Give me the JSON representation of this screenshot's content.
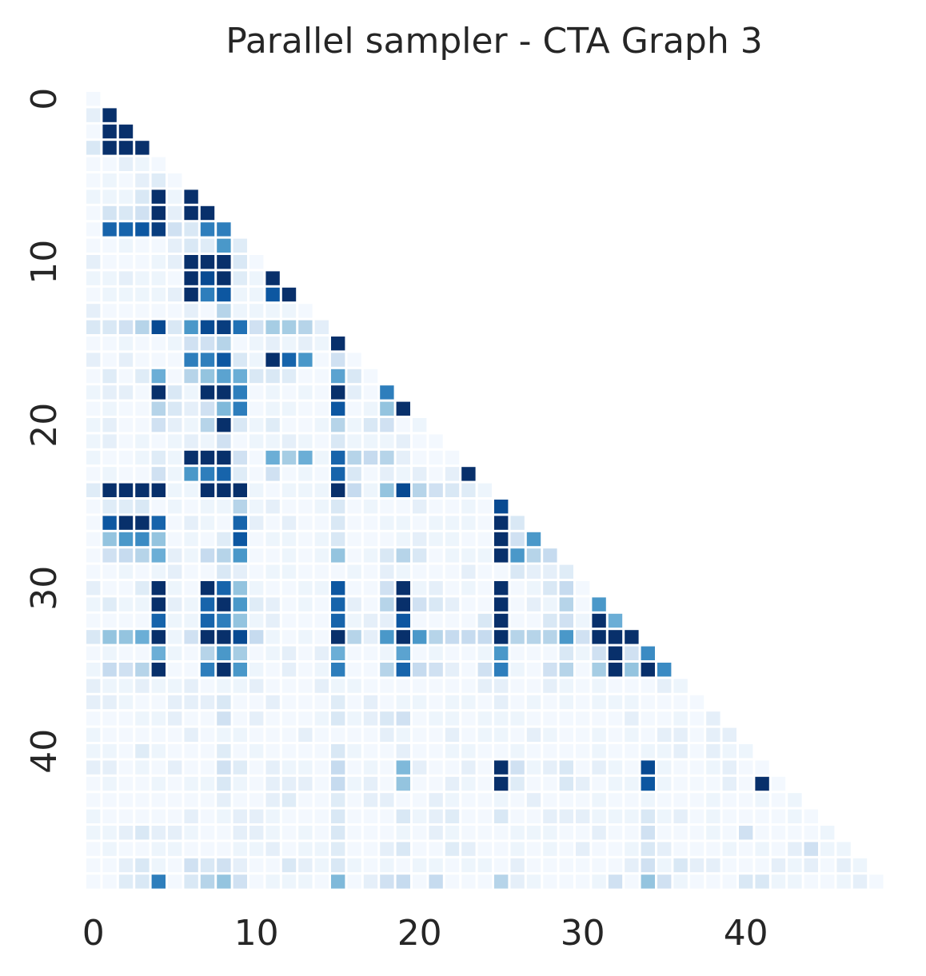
{
  "chart_data": {
    "type": "heatmap",
    "title": "Parallel sampler - CTA Graph 3",
    "xlabel": "",
    "ylabel": "",
    "n": 49,
    "x_ticks": [
      0,
      10,
      20,
      30,
      40
    ],
    "y_ticks": [
      0,
      10,
      20,
      30,
      40
    ],
    "mask": "upper-triangle (j > i) hidden",
    "colormap": "Blues",
    "colorbar": false,
    "grid": false,
    "value_range": [
      0,
      1
    ],
    "colors": {
      "low": "#f7fbff",
      "high": "#08306b"
    },
    "cells": [
      [
        1,
        1,
        1.0
      ],
      [
        2,
        1,
        1.0
      ],
      [
        2,
        2,
        1.0
      ],
      [
        3,
        1,
        1.0
      ],
      [
        3,
        2,
        1.0
      ],
      [
        3,
        3,
        1.0
      ],
      [
        3,
        0,
        0.15
      ],
      [
        5,
        4,
        0.12
      ],
      [
        6,
        4,
        1.0
      ],
      [
        6,
        6,
        1.0
      ],
      [
        6,
        3,
        0.15
      ],
      [
        7,
        4,
        1.0
      ],
      [
        7,
        6,
        1.0
      ],
      [
        7,
        7,
        1.0
      ],
      [
        7,
        1,
        0.18
      ],
      [
        7,
        2,
        0.15
      ],
      [
        7,
        3,
        0.2
      ],
      [
        8,
        1,
        0.8
      ],
      [
        8,
        2,
        0.8
      ],
      [
        8,
        3,
        0.85
      ],
      [
        8,
        4,
        0.95
      ],
      [
        8,
        5,
        0.2
      ],
      [
        8,
        6,
        0.15
      ],
      [
        8,
        7,
        0.7
      ],
      [
        8,
        8,
        0.7
      ],
      [
        9,
        8,
        0.6
      ],
      [
        9,
        6,
        0.15
      ],
      [
        9,
        7,
        0.12
      ],
      [
        9,
        9,
        0.12
      ],
      [
        10,
        6,
        1.0
      ],
      [
        10,
        7,
        1.0
      ],
      [
        10,
        8,
        1.0
      ],
      [
        10,
        9,
        0.15
      ],
      [
        11,
        6,
        1.0
      ],
      [
        11,
        7,
        0.9
      ],
      [
        11,
        8,
        1.0
      ],
      [
        11,
        11,
        1.0
      ],
      [
        11,
        9,
        0.12
      ],
      [
        12,
        6,
        1.0
      ],
      [
        12,
        7,
        0.7
      ],
      [
        12,
        8,
        0.85
      ],
      [
        12,
        11,
        0.85
      ],
      [
        12,
        12,
        1.0
      ],
      [
        13,
        8,
        0.3
      ],
      [
        14,
        0,
        0.15
      ],
      [
        14,
        1,
        0.15
      ],
      [
        14,
        2,
        0.2
      ],
      [
        14,
        3,
        0.3
      ],
      [
        14,
        4,
        0.9
      ],
      [
        14,
        5,
        0.15
      ],
      [
        14,
        6,
        0.6
      ],
      [
        14,
        7,
        0.9
      ],
      [
        14,
        8,
        0.95
      ],
      [
        14,
        9,
        0.75
      ],
      [
        14,
        10,
        0.2
      ],
      [
        14,
        11,
        0.35
      ],
      [
        14,
        12,
        0.35
      ],
      [
        14,
        13,
        0.3
      ],
      [
        14,
        14,
        0.1
      ],
      [
        15,
        15,
        1.0
      ],
      [
        15,
        8,
        0.3
      ],
      [
        15,
        7,
        0.2
      ],
      [
        15,
        6,
        0.2
      ],
      [
        16,
        6,
        0.7
      ],
      [
        16,
        7,
        0.7
      ],
      [
        16,
        8,
        0.85
      ],
      [
        16,
        11,
        1.0
      ],
      [
        16,
        12,
        0.8
      ],
      [
        16,
        13,
        0.6
      ],
      [
        16,
        15,
        0.2
      ],
      [
        16,
        9,
        0.15
      ],
      [
        17,
        4,
        0.5
      ],
      [
        17,
        6,
        0.3
      ],
      [
        17,
        7,
        0.4
      ],
      [
        17,
        8,
        0.55
      ],
      [
        17,
        9,
        0.5
      ],
      [
        17,
        15,
        0.55
      ],
      [
        17,
        16,
        0.15
      ],
      [
        17,
        1,
        0.12
      ],
      [
        17,
        3,
        0.12
      ],
      [
        17,
        10,
        0.15
      ],
      [
        17,
        11,
        0.15
      ],
      [
        17,
        12,
        0.12
      ],
      [
        18,
        4,
        1.0
      ],
      [
        18,
        5,
        0.15
      ],
      [
        18,
        7,
        1.0
      ],
      [
        18,
        8,
        1.0
      ],
      [
        18,
        9,
        0.7
      ],
      [
        18,
        15,
        1.0
      ],
      [
        18,
        18,
        0.7
      ],
      [
        18,
        16,
        0.1
      ],
      [
        19,
        4,
        0.3
      ],
      [
        19,
        5,
        0.15
      ],
      [
        19,
        7,
        0.2
      ],
      [
        19,
        8,
        0.45
      ],
      [
        19,
        9,
        0.7
      ],
      [
        19,
        15,
        0.85
      ],
      [
        19,
        18,
        0.4
      ],
      [
        19,
        19,
        1.0
      ],
      [
        20,
        8,
        1.0
      ],
      [
        20,
        7,
        0.3
      ],
      [
        20,
        4,
        0.2
      ],
      [
        20,
        9,
        0.15
      ],
      [
        20,
        15,
        0.3
      ],
      [
        20,
        17,
        0.15
      ],
      [
        20,
        18,
        0.2
      ],
      [
        20,
        11,
        0.12
      ],
      [
        21,
        8,
        0.2
      ],
      [
        21,
        15,
        0.15
      ],
      [
        22,
        6,
        1.0
      ],
      [
        22,
        7,
        1.0
      ],
      [
        22,
        8,
        1.0
      ],
      [
        22,
        9,
        0.2
      ],
      [
        22,
        11,
        0.5
      ],
      [
        22,
        12,
        0.35
      ],
      [
        22,
        13,
        0.5
      ],
      [
        22,
        15,
        0.8
      ],
      [
        22,
        16,
        0.3
      ],
      [
        22,
        17,
        0.25
      ],
      [
        22,
        18,
        0.3
      ],
      [
        22,
        4,
        0.12
      ],
      [
        23,
        6,
        0.6
      ],
      [
        23,
        7,
        0.7
      ],
      [
        23,
        8,
        0.8
      ],
      [
        23,
        4,
        0.2
      ],
      [
        23,
        11,
        0.2
      ],
      [
        23,
        15,
        0.8
      ],
      [
        23,
        16,
        0.15
      ],
      [
        23,
        23,
        1.0
      ],
      [
        23,
        9,
        0.12
      ],
      [
        24,
        0,
        0.12
      ],
      [
        24,
        1,
        1.0
      ],
      [
        24,
        2,
        1.0
      ],
      [
        24,
        3,
        1.0
      ],
      [
        24,
        4,
        1.0
      ],
      [
        24,
        7,
        1.0
      ],
      [
        24,
        8,
        1.0
      ],
      [
        24,
        9,
        1.0
      ],
      [
        24,
        15,
        1.0
      ],
      [
        24,
        16,
        0.25
      ],
      [
        24,
        18,
        0.4
      ],
      [
        24,
        19,
        0.9
      ],
      [
        24,
        20,
        0.3
      ],
      [
        24,
        21,
        0.2
      ],
      [
        24,
        22,
        0.15
      ],
      [
        24,
        23,
        0.12
      ],
      [
        25,
        25,
        0.9
      ],
      [
        25,
        9,
        0.3
      ],
      [
        25,
        15,
        0.15
      ],
      [
        25,
        1,
        0.12
      ],
      [
        25,
        2,
        0.12
      ],
      [
        25,
        3,
        0.15
      ],
      [
        26,
        1,
        0.85
      ],
      [
        26,
        2,
        1.0
      ],
      [
        26,
        3,
        1.0
      ],
      [
        26,
        4,
        0.8
      ],
      [
        26,
        9,
        0.8
      ],
      [
        26,
        25,
        1.0
      ],
      [
        26,
        26,
        0.15
      ],
      [
        26,
        15,
        0.15
      ],
      [
        27,
        1,
        0.4
      ],
      [
        27,
        2,
        0.6
      ],
      [
        27,
        3,
        0.65
      ],
      [
        27,
        4,
        0.4
      ],
      [
        27,
        9,
        0.85
      ],
      [
        27,
        25,
        1.0
      ],
      [
        27,
        26,
        0.2
      ],
      [
        27,
        27,
        0.6
      ],
      [
        27,
        8,
        0.12
      ],
      [
        27,
        15,
        0.15
      ],
      [
        28,
        1,
        0.2
      ],
      [
        28,
        2,
        0.25
      ],
      [
        28,
        3,
        0.3
      ],
      [
        28,
        4,
        0.5
      ],
      [
        28,
        7,
        0.25
      ],
      [
        28,
        8,
        0.3
      ],
      [
        28,
        9,
        0.6
      ],
      [
        28,
        15,
        0.4
      ],
      [
        28,
        19,
        0.3
      ],
      [
        28,
        25,
        1.0
      ],
      [
        28,
        26,
        0.6
      ],
      [
        28,
        27,
        0.3
      ],
      [
        28,
        28,
        0.25
      ],
      [
        28,
        18,
        0.15
      ],
      [
        28,
        20,
        0.15
      ],
      [
        29,
        29,
        0.12
      ],
      [
        29,
        26,
        0.15
      ],
      [
        29,
        8,
        0.15
      ],
      [
        30,
        4,
        1.0
      ],
      [
        30,
        7,
        1.0
      ],
      [
        30,
        8,
        0.8
      ],
      [
        30,
        9,
        0.4
      ],
      [
        30,
        15,
        0.85
      ],
      [
        30,
        19,
        1.0
      ],
      [
        30,
        25,
        1.0
      ],
      [
        30,
        29,
        0.25
      ],
      [
        30,
        18,
        0.2
      ],
      [
        30,
        28,
        0.15
      ],
      [
        30,
        3,
        0.12
      ],
      [
        31,
        4,
        1.0
      ],
      [
        31,
        7,
        0.8
      ],
      [
        31,
        8,
        1.0
      ],
      [
        31,
        9,
        0.6
      ],
      [
        31,
        15,
        0.8
      ],
      [
        31,
        18,
        0.3
      ],
      [
        31,
        19,
        1.0
      ],
      [
        31,
        20,
        0.2
      ],
      [
        31,
        25,
        1.0
      ],
      [
        31,
        29,
        0.3
      ],
      [
        31,
        31,
        0.6
      ],
      [
        31,
        21,
        0.15
      ],
      [
        31,
        1,
        0.12
      ],
      [
        31,
        10,
        0.12
      ],
      [
        32,
        4,
        0.8
      ],
      [
        32,
        7,
        0.8
      ],
      [
        32,
        8,
        0.7
      ],
      [
        32,
        9,
        0.4
      ],
      [
        32,
        15,
        0.8
      ],
      [
        32,
        19,
        0.85
      ],
      [
        32,
        25,
        1.0
      ],
      [
        32,
        29,
        0.2
      ],
      [
        32,
        31,
        1.0
      ],
      [
        32,
        32,
        0.5
      ],
      [
        32,
        24,
        0.15
      ],
      [
        32,
        28,
        0.15
      ],
      [
        33,
        0,
        0.15
      ],
      [
        33,
        1,
        0.4
      ],
      [
        33,
        2,
        0.4
      ],
      [
        33,
        3,
        0.5
      ],
      [
        33,
        4,
        1.0
      ],
      [
        33,
        6,
        0.2
      ],
      [
        33,
        7,
        1.0
      ],
      [
        33,
        8,
        1.0
      ],
      [
        33,
        9,
        0.9
      ],
      [
        33,
        10,
        0.25
      ],
      [
        33,
        15,
        1.0
      ],
      [
        33,
        16,
        0.3
      ],
      [
        33,
        18,
        0.6
      ],
      [
        33,
        19,
        1.0
      ],
      [
        33,
        20,
        0.6
      ],
      [
        33,
        21,
        0.3
      ],
      [
        33,
        22,
        0.25
      ],
      [
        33,
        23,
        0.25
      ],
      [
        33,
        24,
        0.25
      ],
      [
        33,
        25,
        1.0
      ],
      [
        33,
        26,
        0.3
      ],
      [
        33,
        27,
        0.3
      ],
      [
        33,
        28,
        0.3
      ],
      [
        33,
        29,
        0.6
      ],
      [
        33,
        30,
        0.2
      ],
      [
        33,
        31,
        1.0
      ],
      [
        33,
        32,
        1.0
      ],
      [
        33,
        33,
        1.0
      ],
      [
        34,
        4,
        0.5
      ],
      [
        34,
        7,
        0.3
      ],
      [
        34,
        8,
        0.6
      ],
      [
        34,
        9,
        0.35
      ],
      [
        34,
        15,
        0.5
      ],
      [
        34,
        19,
        0.55
      ],
      [
        34,
        25,
        0.6
      ],
      [
        34,
        31,
        0.2
      ],
      [
        34,
        32,
        1.0
      ],
      [
        34,
        33,
        0.2
      ],
      [
        34,
        34,
        0.65
      ],
      [
        34,
        29,
        0.15
      ],
      [
        35,
        1,
        0.25
      ],
      [
        35,
        2,
        0.2
      ],
      [
        35,
        3,
        0.3
      ],
      [
        35,
        4,
        1.0
      ],
      [
        35,
        7,
        0.7
      ],
      [
        35,
        8,
        1.0
      ],
      [
        35,
        9,
        0.6
      ],
      [
        35,
        15,
        0.7
      ],
      [
        35,
        18,
        0.3
      ],
      [
        35,
        19,
        0.8
      ],
      [
        35,
        20,
        0.25
      ],
      [
        35,
        25,
        0.7
      ],
      [
        35,
        29,
        0.3
      ],
      [
        35,
        31,
        0.35
      ],
      [
        35,
        32,
        1.0
      ],
      [
        35,
        33,
        0.4
      ],
      [
        35,
        34,
        1.0
      ],
      [
        35,
        35,
        0.65
      ],
      [
        35,
        21,
        0.2
      ],
      [
        35,
        24,
        0.2
      ],
      [
        35,
        28,
        0.2
      ],
      [
        37,
        8,
        0.15
      ],
      [
        37,
        15,
        0.12
      ],
      [
        38,
        8,
        0.2
      ],
      [
        38,
        15,
        0.15
      ],
      [
        38,
        18,
        0.15
      ],
      [
        38,
        19,
        0.2
      ],
      [
        40,
        3,
        0.12
      ],
      [
        40,
        15,
        0.15
      ],
      [
        40,
        8,
        0.12
      ],
      [
        41,
        8,
        0.2
      ],
      [
        41,
        9,
        0.12
      ],
      [
        41,
        15,
        0.25
      ],
      [
        41,
        19,
        0.45
      ],
      [
        41,
        25,
        1.0
      ],
      [
        41,
        26,
        0.2
      ],
      [
        41,
        29,
        0.15
      ],
      [
        41,
        34,
        0.9
      ],
      [
        42,
        8,
        0.15
      ],
      [
        42,
        15,
        0.25
      ],
      [
        42,
        19,
        0.4
      ],
      [
        42,
        25,
        1.0
      ],
      [
        42,
        29,
        0.15
      ],
      [
        42,
        34,
        0.85
      ],
      [
        42,
        41,
        1.0
      ],
      [
        42,
        26,
        0.12
      ],
      [
        43,
        12,
        0.12
      ],
      [
        43,
        15,
        0.12
      ],
      [
        44,
        15,
        0.15
      ],
      [
        44,
        19,
        0.15
      ],
      [
        44,
        22,
        0.12
      ],
      [
        44,
        25,
        0.15
      ],
      [
        44,
        34,
        0.15
      ],
      [
        45,
        3,
        0.15
      ],
      [
        45,
        15,
        0.15
      ],
      [
        45,
        34,
        0.2
      ],
      [
        45,
        40,
        0.2
      ],
      [
        46,
        15,
        0.12
      ],
      [
        46,
        19,
        0.15
      ],
      [
        46,
        22,
        0.12
      ],
      [
        46,
        34,
        0.15
      ],
      [
        46,
        44,
        0.2
      ],
      [
        47,
        3,
        0.15
      ],
      [
        47,
        6,
        0.2
      ],
      [
        47,
        8,
        0.2
      ],
      [
        47,
        12,
        0.15
      ],
      [
        47,
        15,
        0.15
      ],
      [
        47,
        34,
        0.2
      ],
      [
        47,
        36,
        0.15
      ],
      [
        47,
        7,
        0.15
      ],
      [
        48,
        4,
        0.7
      ],
      [
        48,
        7,
        0.3
      ],
      [
        48,
        8,
        0.4
      ],
      [
        48,
        9,
        0.2
      ],
      [
        48,
        15,
        0.45
      ],
      [
        48,
        18,
        0.2
      ],
      [
        48,
        19,
        0.25
      ],
      [
        48,
        21,
        0.25
      ],
      [
        48,
        25,
        0.3
      ],
      [
        48,
        32,
        0.2
      ],
      [
        48,
        34,
        0.4
      ],
      [
        48,
        35,
        0.2
      ],
      [
        48,
        40,
        0.15
      ],
      [
        48,
        41,
        0.15
      ],
      [
        48,
        6,
        0.15
      ],
      [
        48,
        3,
        0.15
      ],
      [
        48,
        2,
        0.12
      ]
    ]
  }
}
